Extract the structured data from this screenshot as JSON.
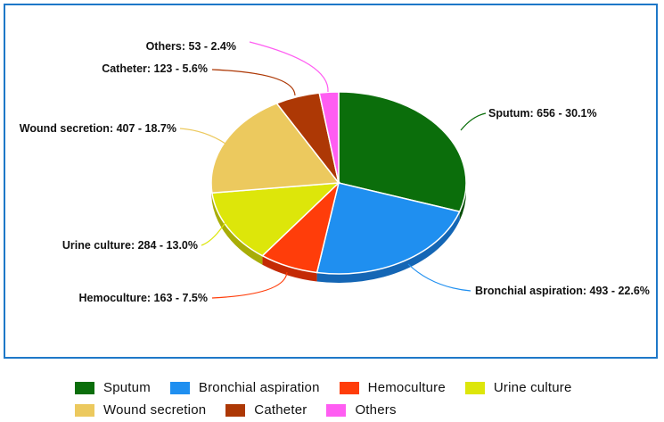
{
  "chart_data": {
    "type": "pie",
    "style": "3d",
    "categories": [
      "Sputum",
      "Bronchial aspiration",
      "Hemoculture",
      "Urine culture",
      "Wound secretion",
      "Catheter",
      "Others"
    ],
    "values": [
      656,
      493,
      163,
      284,
      407,
      123,
      53
    ],
    "percents": [
      30.1,
      22.6,
      7.5,
      13.0,
      18.7,
      5.6,
      2.4
    ],
    "slice_labels": [
      "Sputum: 656 - 30.1%",
      "Bronchial aspiration: 493 - 22.6%",
      "Hemoculture: 163 - 7.5%",
      "Urine culture: 284 - 13.0%",
      "Wound secretion: 407 - 18.7%",
      "Catheter: 123 - 5.6%",
      "Others: 53 - 2.4%"
    ],
    "colors": [
      "#0b6e0b",
      "#1f8ff0",
      "#ff3d0a",
      "#dde60a",
      "#ecc95e",
      "#ad3805",
      "#ff5df2"
    ],
    "side_colors": [
      "#064d06",
      "#1466b5",
      "#c42a05",
      "#a8ad07",
      "#b89a45",
      "#7a2703",
      "#c23fb8"
    ],
    "legend_position": "bottom",
    "frame_color": "#1e78c8"
  },
  "legend": {
    "rows": [
      [
        0,
        1,
        2,
        3
      ],
      [
        4,
        5,
        6
      ]
    ]
  }
}
